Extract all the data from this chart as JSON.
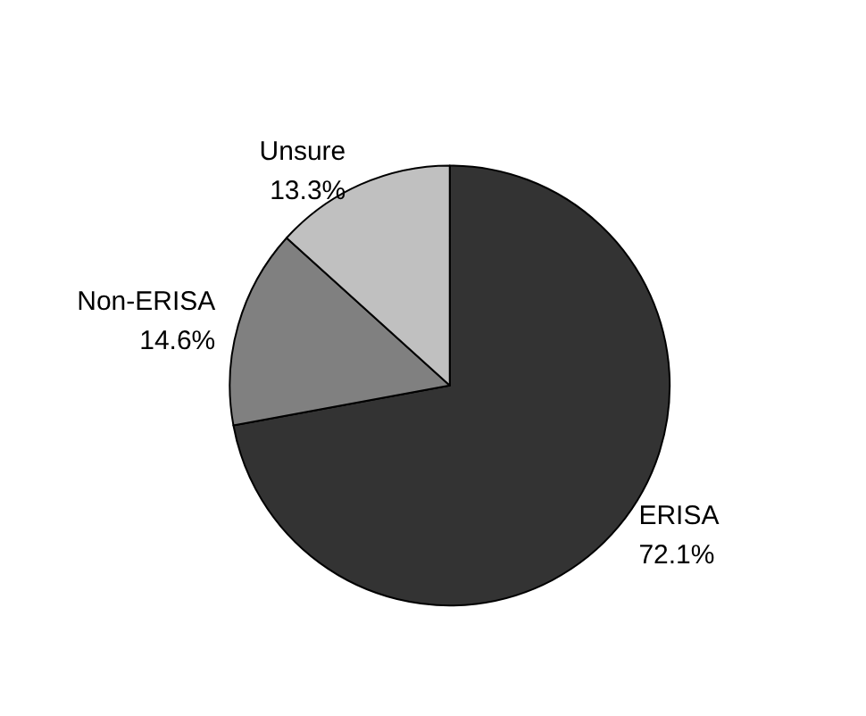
{
  "chart_data": {
    "type": "pie",
    "categories": [
      "ERISA",
      "Non-ERISA",
      "Unsure"
    ],
    "values": [
      72.1,
      14.6,
      13.3
    ],
    "colors": [
      "#333333",
      "#808080",
      "#c0c0c0"
    ],
    "value_labels": [
      "72.1%",
      "14.6%",
      "13.3%"
    ],
    "legend": false
  }
}
